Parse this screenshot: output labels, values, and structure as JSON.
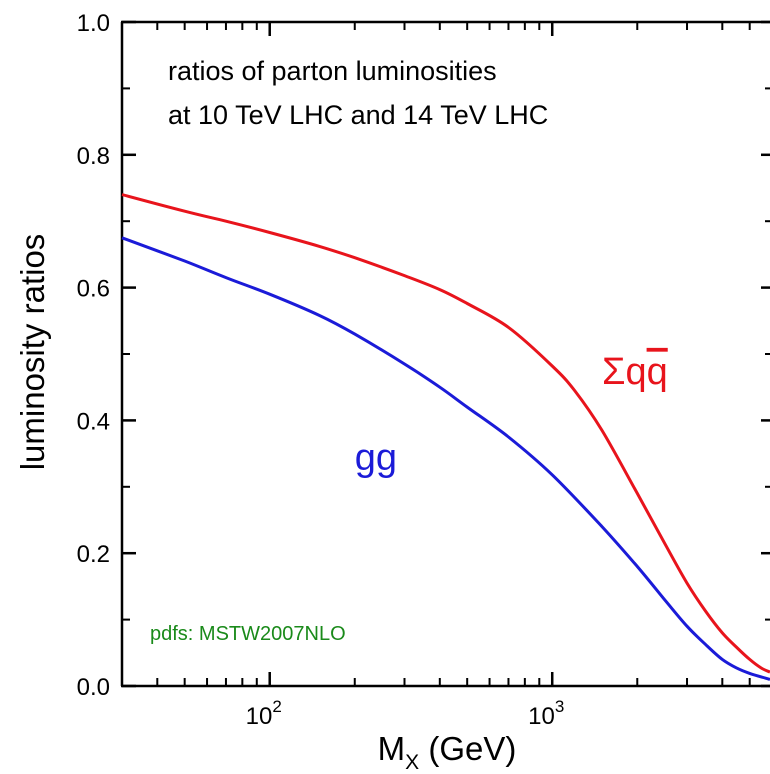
{
  "chart_data": {
    "type": "line",
    "xscale": "log",
    "xlim": [
      30,
      5900
    ],
    "ylim": [
      0.0,
      1.0
    ],
    "grid": false,
    "xlabel": "M",
    "xlabel_sub": "X",
    "xlabel_unit": " (GeV)",
    "ylabel": "luminosity ratios",
    "x_major_ticks": [
      {
        "value": 100,
        "base": "10",
        "exp": "2"
      },
      {
        "value": 1000,
        "base": "10",
        "exp": "3"
      }
    ],
    "x_minor_ticks": [
      30,
      40,
      50,
      60,
      70,
      80,
      90,
      200,
      300,
      400,
      500,
      600,
      700,
      800,
      900,
      2000,
      3000,
      4000,
      5000
    ],
    "y_major_ticks": [
      {
        "value": 0.0,
        "label": "0.0"
      },
      {
        "value": 0.2,
        "label": "0.2"
      },
      {
        "value": 0.4,
        "label": "0.4"
      },
      {
        "value": 0.6,
        "label": "0.6"
      },
      {
        "value": 0.8,
        "label": "0.8"
      },
      {
        "value": 1.0,
        "label": "1.0"
      }
    ],
    "y_minor_ticks": [
      0.1,
      0.3,
      0.5,
      0.7,
      0.9
    ],
    "annotation_lines": [
      "ratios of parton luminosities",
      "at 10 TeV LHC and 14 TeV LHC"
    ],
    "note": "pdfs: MSTW2007NLO",
    "note_color": "#1a8a1a",
    "series": [
      {
        "label_main": "Σq",
        "label_bar": "q",
        "color": "#e8141c",
        "label_at": [
          1500,
          0.455
        ],
        "x": [
          30,
          50,
          70,
          100,
          150,
          200,
          300,
          400,
          500,
          700,
          1000,
          1200,
          1500,
          2000,
          2500,
          3000,
          3500,
          4000,
          4500,
          5000,
          5500,
          5900
        ],
        "y": [
          0.74,
          0.715,
          0.7,
          0.683,
          0.662,
          0.645,
          0.618,
          0.597,
          0.576,
          0.54,
          0.482,
          0.445,
          0.385,
          0.29,
          0.215,
          0.155,
          0.112,
          0.08,
          0.058,
          0.04,
          0.027,
          0.021
        ]
      },
      {
        "label_main": "gg",
        "color": "#1b1bd8",
        "label_at": [
          200,
          0.325
        ],
        "x": [
          30,
          50,
          70,
          100,
          150,
          200,
          300,
          400,
          500,
          700,
          1000,
          1500,
          2000,
          2500,
          3000,
          3500,
          4000,
          4500,
          5000,
          5900
        ],
        "y": [
          0.675,
          0.64,
          0.615,
          0.59,
          0.558,
          0.53,
          0.485,
          0.45,
          0.42,
          0.375,
          0.318,
          0.24,
          0.18,
          0.13,
          0.09,
          0.062,
          0.04,
          0.027,
          0.019,
          0.01
        ]
      }
    ]
  }
}
